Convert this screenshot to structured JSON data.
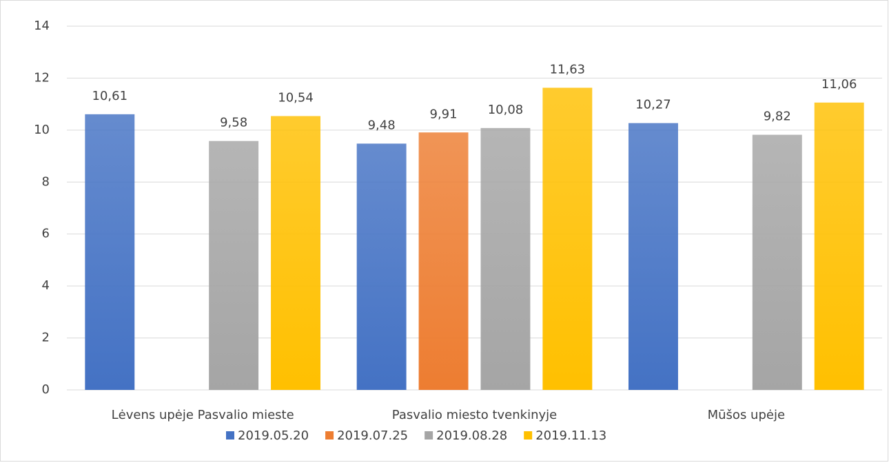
{
  "chart_data": {
    "type": "bar",
    "categories": [
      "Lėvens upėje Pasvalio mieste",
      "Pasvalio miesto tvenkinyje",
      "Mūšos upėje"
    ],
    "series": [
      {
        "name": "2019.05.20",
        "color": "#4472c4",
        "values": [
          10.61,
          9.48,
          10.27
        ],
        "value_labels": [
          "10,61",
          "9,48",
          "10,27"
        ]
      },
      {
        "name": "2019.07.25",
        "color": "#ed7d31",
        "values": [
          null,
          9.91,
          null
        ],
        "value_labels": [
          null,
          "9,91",
          null
        ]
      },
      {
        "name": "2019.08.28",
        "color": "#a5a5a5",
        "values": [
          9.58,
          10.08,
          9.82
        ],
        "value_labels": [
          "9,58",
          "10,08",
          "9,82"
        ]
      },
      {
        "name": "2019.11.13",
        "color": "#ffc000",
        "values": [
          10.54,
          11.63,
          11.06
        ],
        "value_labels": [
          "10,54",
          "11,63",
          "11,06"
        ]
      }
    ],
    "ylim": [
      0,
      14
    ],
    "yticks": [
      0,
      2,
      4,
      6,
      8,
      10,
      12,
      14
    ],
    "grid": true,
    "legend": "bottom"
  }
}
